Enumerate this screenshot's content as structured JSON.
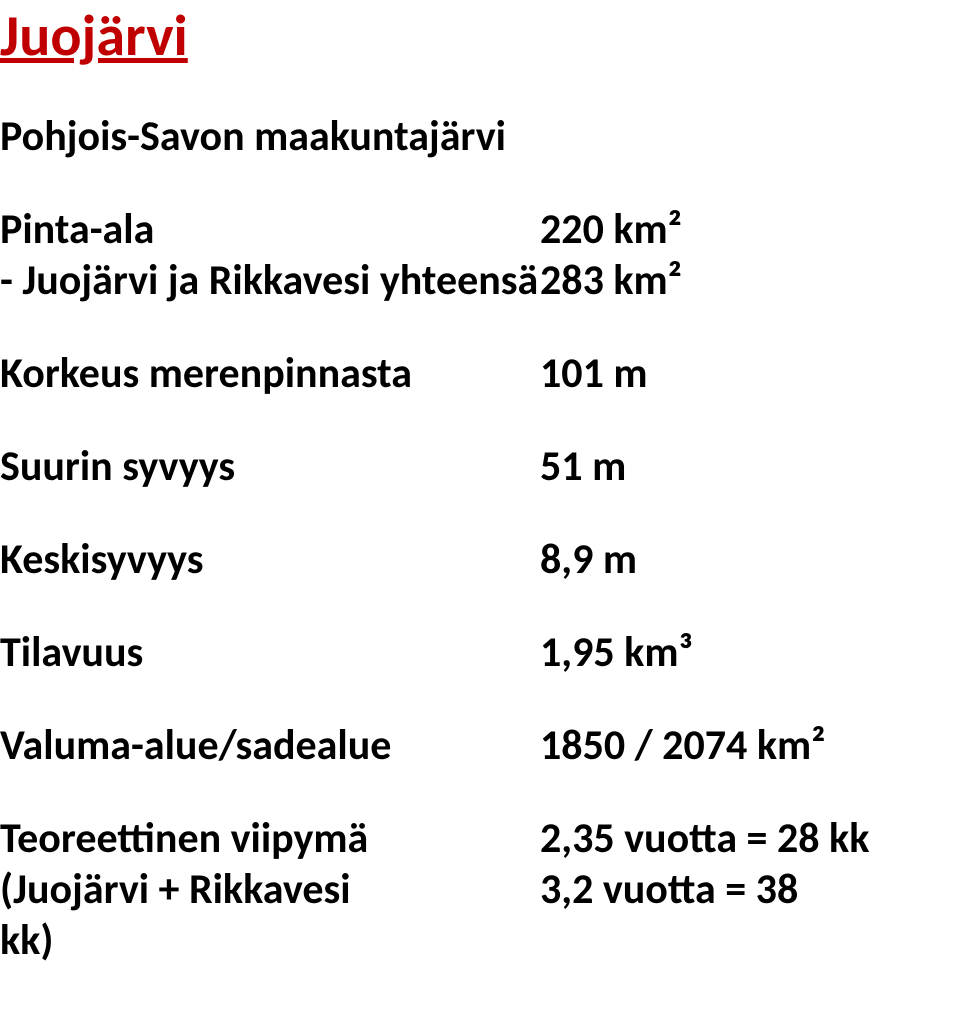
{
  "title": {
    "text": "Juojärvi",
    "color": "#c00000",
    "fontsize": 58,
    "fontweight": "bold",
    "underline": true
  },
  "subtitle": "Pohjois-Savon maakuntajärvi",
  "body": {
    "fontsize": 42,
    "fontweight": "bold",
    "color": "#000000"
  },
  "rows": [
    {
      "label": "Pinta-ala",
      "value": "220 km²"
    },
    {
      "label": "- Juojärvi ja Rikkavesi yhteensä",
      "value": "283 km²"
    },
    {
      "label": "Korkeus merenpinnasta",
      "value": "101 m"
    },
    {
      "label": "Suurin syvyys",
      "value": "51 m"
    },
    {
      "label": "Keskisyvyys",
      "value": "8,9 m"
    },
    {
      "label": "Tilavuus",
      "value": "1,95 km³"
    },
    {
      "label": "Valuma-alue/sadealue",
      "value": "1850 / 2074 km²"
    },
    {
      "label": "Teoreettinen viipymä",
      "value": "2,35 vuotta = 28 kk"
    },
    {
      "label": "(Juojärvi + Rikkavesi",
      "value": "3,2  vuotta = 38"
    },
    {
      "label": "kk)",
      "value": ""
    }
  ],
  "background_color": "#ffffff"
}
